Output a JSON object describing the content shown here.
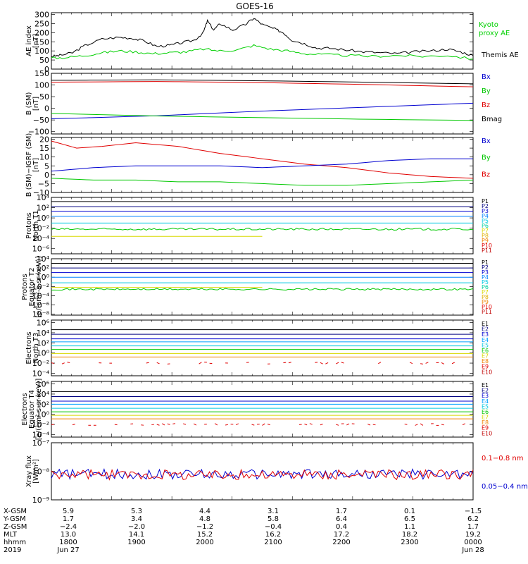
{
  "title": "GOES-16",
  "colors": {
    "black": "#000000",
    "green": "#00c800",
    "red": "#e00000",
    "blue": "#0000d0",
    "cyan": "#00c8e0",
    "yellow": "#d8d800",
    "orange": "#f0a000",
    "lime": "#00e000",
    "darkred": "#c00000",
    "purple": "#4000c0",
    "kyoto": "#00d000"
  },
  "chart_data": [
    {
      "type": "line",
      "id": "ae",
      "ylabel_lines": [
        "AE index",
        "[nT]"
      ],
      "yticks": [
        "300",
        "250",
        "200",
        "150",
        "100",
        "50",
        "0"
      ],
      "ylim": [
        0,
        310
      ],
      "legend": [
        {
          "name": "Kyoto proxy AE",
          "lines": [
            "Kyoto",
            "proxy AE"
          ],
          "color": "#00d000"
        },
        {
          "name": "Themis AE",
          "lines": [
            "Themis AE"
          ],
          "color": "#000000"
        }
      ],
      "series": [
        {
          "name": "Themis AE",
          "color": "#000000",
          "points": [
            [
              0,
              70
            ],
            [
              0.02,
              75
            ],
            [
              0.05,
              90
            ],
            [
              0.08,
              130
            ],
            [
              0.12,
              165
            ],
            [
              0.16,
              175
            ],
            [
              0.19,
              170
            ],
            [
              0.22,
              155
            ],
            [
              0.25,
              125
            ],
            [
              0.28,
              130
            ],
            [
              0.31,
              145
            ],
            [
              0.34,
              160
            ],
            [
              0.36,
              200
            ],
            [
              0.37,
              265
            ],
            [
              0.385,
              215
            ],
            [
              0.4,
              250
            ],
            [
              0.43,
              215
            ],
            [
              0.46,
              245
            ],
            [
              0.48,
              280
            ],
            [
              0.5,
              245
            ],
            [
              0.53,
              220
            ],
            [
              0.55,
              200
            ],
            [
              0.57,
              160
            ],
            [
              0.6,
              140
            ],
            [
              0.63,
              115
            ],
            [
              0.66,
              115
            ],
            [
              0.7,
              105
            ],
            [
              0.74,
              95
            ],
            [
              0.78,
              90
            ],
            [
              0.82,
              85
            ],
            [
              0.86,
              95
            ],
            [
              0.9,
              100
            ],
            [
              0.94,
              110
            ],
            [
              0.97,
              95
            ],
            [
              1.0,
              75
            ]
          ]
        },
        {
          "name": "Kyoto proxy AE",
          "color": "#00d000",
          "points": [
            [
              0,
              60
            ],
            [
              0.04,
              65
            ],
            [
              0.08,
              75
            ],
            [
              0.12,
              90
            ],
            [
              0.16,
              100
            ],
            [
              0.2,
              95
            ],
            [
              0.24,
              85
            ],
            [
              0.28,
              90
            ],
            [
              0.32,
              95
            ],
            [
              0.36,
              110
            ],
            [
              0.4,
              100
            ],
            [
              0.44,
              105
            ],
            [
              0.48,
              130
            ],
            [
              0.52,
              110
            ],
            [
              0.56,
              100
            ],
            [
              0.6,
              85
            ],
            [
              0.64,
              80
            ],
            [
              0.7,
              75
            ],
            [
              0.76,
              70
            ],
            [
              0.82,
              75
            ],
            [
              0.88,
              70
            ],
            [
              0.94,
              75
            ],
            [
              1.0,
              55
            ]
          ]
        }
      ]
    },
    {
      "type": "line",
      "id": "bsm",
      "ylabel_lines": [
        "B (SM)",
        "[nT]"
      ],
      "yticks": [
        "150",
        "100",
        "50",
        "0",
        "−50",
        "−100"
      ],
      "ylim": [
        -110,
        150
      ],
      "legend": [
        {
          "name": "Bx",
          "color": "#0000d0"
        },
        {
          "name": "By",
          "color": "#00c800"
        },
        {
          "name": "Bz",
          "color": "#e00000"
        },
        {
          "name": "Bmag",
          "color": "#000000"
        }
      ],
      "series": [
        {
          "name": "Bmag",
          "color": "#000000",
          "points": [
            [
              0,
              120
            ],
            [
              0.25,
              122
            ],
            [
              0.5,
              118
            ],
            [
              0.75,
              112
            ],
            [
              1.0,
              105
            ]
          ]
        },
        {
          "name": "Bz",
          "color": "#e00000",
          "points": [
            [
              0,
              112
            ],
            [
              0.25,
              115
            ],
            [
              0.5,
              110
            ],
            [
              0.75,
              102
            ],
            [
              1.0,
              92
            ]
          ]
        },
        {
          "name": "Bx",
          "color": "#0000d0",
          "points": [
            [
              0,
              -45
            ],
            [
              0.25,
              -32
            ],
            [
              0.5,
              -12
            ],
            [
              0.75,
              5
            ],
            [
              1.0,
              22
            ]
          ]
        },
        {
          "name": "By",
          "color": "#00c800",
          "points": [
            [
              0,
              -22
            ],
            [
              0.25,
              -33
            ],
            [
              0.5,
              -40
            ],
            [
              0.75,
              -47
            ],
            [
              1.0,
              -52
            ]
          ]
        }
      ]
    },
    {
      "type": "line",
      "id": "bigrf",
      "ylabel_lines": [
        "B (SM)−IGRF (SM)",
        "[nT]"
      ],
      "yticks": [
        "20",
        "15",
        "10",
        "5",
        "0",
        "−5",
        "−10"
      ],
      "ylim": [
        -10,
        21
      ],
      "legend": [
        {
          "name": "Bx",
          "color": "#0000d0"
        },
        {
          "name": "By",
          "color": "#00c800"
        },
        {
          "name": "Bz",
          "color": "#e00000"
        }
      ],
      "series": [
        {
          "name": "Bz",
          "color": "#e00000",
          "points": [
            [
              0,
              19
            ],
            [
              0.06,
              15
            ],
            [
              0.12,
              16
            ],
            [
              0.2,
              18
            ],
            [
              0.3,
              16
            ],
            [
              0.4,
              12
            ],
            [
              0.5,
              9
            ],
            [
              0.6,
              6
            ],
            [
              0.7,
              4
            ],
            [
              0.8,
              1
            ],
            [
              0.9,
              -1
            ],
            [
              1.0,
              -2
            ]
          ]
        },
        {
          "name": "Bx",
          "color": "#0000d0",
          "points": [
            [
              0,
              2
            ],
            [
              0.1,
              4
            ],
            [
              0.2,
              5
            ],
            [
              0.3,
              5
            ],
            [
              0.4,
              5
            ],
            [
              0.5,
              4
            ],
            [
              0.6,
              5
            ],
            [
              0.7,
              6
            ],
            [
              0.8,
              8
            ],
            [
              0.9,
              9
            ],
            [
              1.0,
              9
            ]
          ]
        },
        {
          "name": "By",
          "color": "#00c800",
          "points": [
            [
              0,
              -2
            ],
            [
              0.1,
              -3
            ],
            [
              0.2,
              -3
            ],
            [
              0.3,
              -4
            ],
            [
              0.4,
              -4
            ],
            [
              0.5,
              -5
            ],
            [
              0.6,
              -6
            ],
            [
              0.7,
              -6
            ],
            [
              0.8,
              -5
            ],
            [
              0.9,
              -4
            ],
            [
              1.0,
              -3
            ]
          ]
        }
      ]
    },
    {
      "type": "line",
      "id": "pn",
      "ylabel_lines": [
        "Protons",
        "North T1"
      ],
      "yticks": [
        "10⁴",
        "10²",
        "10⁰",
        "10⁻²",
        "10⁻⁴",
        "10⁻⁶"
      ],
      "log": true,
      "ylim": [
        -7,
        4
      ],
      "legend": [
        {
          "name": "P1",
          "color": "#000000"
        },
        {
          "name": "P2",
          "color": "#000080"
        },
        {
          "name": "P3",
          "color": "#0000d0"
        },
        {
          "name": "P4",
          "color": "#0080ff"
        },
        {
          "name": "P5",
          "color": "#00c8e0"
        },
        {
          "name": "P6",
          "color": "#00d0a0"
        },
        {
          "name": "P7",
          "color": "#d8d800"
        },
        {
          "name": "P8",
          "color": "#e0b000"
        },
        {
          "name": "P9",
          "color": "#f08000"
        },
        {
          "name": "P10",
          "color": "#e00000"
        },
        {
          "name": "P11",
          "color": "#c00000"
        }
      ],
      "series": [
        {
          "color": "#000000",
          "level": 3.2
        },
        {
          "color": "#000080",
          "level": 2.2
        },
        {
          "color": "#0000d0",
          "level": 1.3
        },
        {
          "color": "#0080ff",
          "level": 0.3
        },
        {
          "color": "#00c8e0",
          "level": -1.0
        },
        {
          "color": "#00c800",
          "level": -2.2,
          "noisy": true
        },
        {
          "color": "#d8d800",
          "level": -3.6,
          "dashed": true
        }
      ]
    },
    {
      "type": "line",
      "id": "pe",
      "ylabel_lines": [
        "Protons",
        "Equator T2",
        "[p/(cm²-s-sr-keV)]"
      ],
      "yticks": [
        "10⁴",
        "10²",
        "10⁰",
        "10⁻²",
        "10⁻⁴",
        "10⁻⁶",
        "10⁻⁸"
      ],
      "log": true,
      "ylim": [
        -8.2,
        4
      ],
      "legend": [
        {
          "name": "P1",
          "color": "#000000"
        },
        {
          "name": "P2",
          "color": "#000080"
        },
        {
          "name": "P3",
          "color": "#0000d0"
        },
        {
          "name": "P4",
          "color": "#0080ff"
        },
        {
          "name": "P5",
          "color": "#00c8e0"
        },
        {
          "name": "P6",
          "color": "#00d0a0"
        },
        {
          "name": "P7",
          "color": "#d8d800"
        },
        {
          "name": "P8",
          "color": "#e0b000"
        },
        {
          "name": "P9",
          "color": "#f08000"
        },
        {
          "name": "P10",
          "color": "#e00000"
        },
        {
          "name": "P11",
          "color": "#c00000"
        }
      ],
      "series": [
        {
          "color": "#000000",
          "level": 3.0
        },
        {
          "color": "#000080",
          "level": 2.0
        },
        {
          "color": "#0000d0",
          "level": 1.0
        },
        {
          "color": "#0080ff",
          "level": 0.0
        },
        {
          "color": "#00c8e0",
          "level": -1.2
        },
        {
          "color": "#00c800",
          "level": -2.6,
          "noisy": true
        },
        {
          "color": "#d8d800",
          "level": -2.2,
          "dashed": true
        },
        {
          "color": "#e00000",
          "level": -5.0,
          "dashed": true
        }
      ]
    },
    {
      "type": "line",
      "id": "en",
      "ylabel_lines": [
        "Electrons",
        "North T3"
      ],
      "yticks": [
        "10⁶",
        "10⁴",
        "10²",
        "10⁰",
        "10⁻²",
        "10⁻⁴"
      ],
      "log": true,
      "ylim": [
        -4.5,
        6.5
      ],
      "legend": [
        {
          "name": "E1",
          "color": "#000000"
        },
        {
          "name": "E2",
          "color": "#000080"
        },
        {
          "name": "E3",
          "color": "#0000d0"
        },
        {
          "name": "E4",
          "color": "#00a0ff"
        },
        {
          "name": "E5",
          "color": "#00c8e0"
        },
        {
          "name": "E6",
          "color": "#00c800"
        },
        {
          "name": "E7",
          "color": "#d8d800"
        },
        {
          "name": "E8",
          "color": "#f08000"
        },
        {
          "name": "E9",
          "color": "#e00000"
        },
        {
          "name": "E10",
          "color": "#c00000"
        }
      ],
      "series": [
        {
          "color": "#000000",
          "level": 4.6
        },
        {
          "color": "#000080",
          "level": 3.7
        },
        {
          "color": "#0000d0",
          "level": 2.8
        },
        {
          "color": "#00a0ff",
          "level": 2.2
        },
        {
          "color": "#00c8e0",
          "level": 1.4
        },
        {
          "color": "#00c800",
          "level": 0.7
        },
        {
          "color": "#d8d800",
          "level": -0.1
        },
        {
          "color": "#f08000",
          "level": -0.8
        },
        {
          "color": "#e00000",
          "level": -2.0,
          "dashed": true,
          "noisy": true
        }
      ]
    },
    {
      "type": "line",
      "id": "ee",
      "ylabel_lines": [
        "Electrons",
        "Equator T4",
        "[e/(cm²-s-sr-keV)]"
      ],
      "yticks": [
        "10⁶",
        "10⁴",
        "10²",
        "10⁰",
        "10⁻²",
        "10⁻⁴"
      ],
      "log": true,
      "ylim": [
        -4.5,
        6.5
      ],
      "legend": [
        {
          "name": "E1",
          "color": "#000000"
        },
        {
          "name": "E2",
          "color": "#000080"
        },
        {
          "name": "E3",
          "color": "#0000d0"
        },
        {
          "name": "E4",
          "color": "#00a0ff"
        },
        {
          "name": "E5",
          "color": "#00c8e0"
        },
        {
          "name": "E6",
          "color": "#00c800"
        },
        {
          "name": "E7",
          "color": "#d8d800"
        },
        {
          "name": "E8",
          "color": "#f08000"
        },
        {
          "name": "E9",
          "color": "#e00000"
        },
        {
          "name": "E10",
          "color": "#c00000"
        }
      ],
      "series": [
        {
          "color": "#000000",
          "level": 4.5
        },
        {
          "color": "#000080",
          "level": 3.5
        },
        {
          "color": "#0000d0",
          "level": 2.6
        },
        {
          "color": "#00a0ff",
          "level": 2.0
        },
        {
          "color": "#00c8e0",
          "level": 1.2
        },
        {
          "color": "#00c800",
          "level": 0.5
        },
        {
          "color": "#d8d800",
          "level": -0.2
        },
        {
          "color": "#f08000",
          "level": -0.9
        },
        {
          "color": "#e00000",
          "level": -2.0,
          "dashed": true,
          "noisy": true
        }
      ]
    },
    {
      "type": "line",
      "id": "xray",
      "ylabel_lines": [
        "Xray flux",
        "[W/m²]"
      ],
      "yticks": [
        "10⁻⁷",
        "10⁻⁸",
        "10⁻⁹"
      ],
      "log": true,
      "ylim": [
        -9,
        -7
      ],
      "legend": [
        {
          "name": "0.1−0.8 nm",
          "color": "#e00000"
        },
        {
          "name": "0.05−0.4 nm",
          "color": "#0000d0"
        }
      ],
      "series": [
        {
          "name": "0.05−0.4 nm",
          "color": "#0000d0",
          "level": -8.1,
          "noisy": true
        },
        {
          "name": "0.1−0.8 nm",
          "color": "#e00000",
          "level": -8.12,
          "noisy": true
        }
      ]
    }
  ],
  "xaxis": {
    "row_labels": [
      "X-GSM",
      "Y-GSM",
      "Z-GSM",
      "MLT",
      "hhmm",
      "2019"
    ],
    "columns": [
      [
        "5.9",
        "1.7",
        "−2.4",
        "13.0",
        "1800",
        "Jun 27"
      ],
      [
        "5.3",
        "3.4",
        "−2.0",
        "14.1",
        "1900",
        ""
      ],
      [
        "4.4",
        "4.8",
        "−1.2",
        "15.2",
        "2000",
        ""
      ],
      [
        "3.1",
        "5.8",
        "−0.4",
        "16.2",
        "2100",
        ""
      ],
      [
        "1.7",
        "6.4",
        "0.4",
        "17.2",
        "2200",
        ""
      ],
      [
        "0.1",
        "6.5",
        "1.1",
        "18.2",
        "2300",
        ""
      ],
      [
        "−1.5",
        "6.2",
        "1.7",
        "19.2",
        "0000",
        "Jun 28"
      ]
    ]
  }
}
